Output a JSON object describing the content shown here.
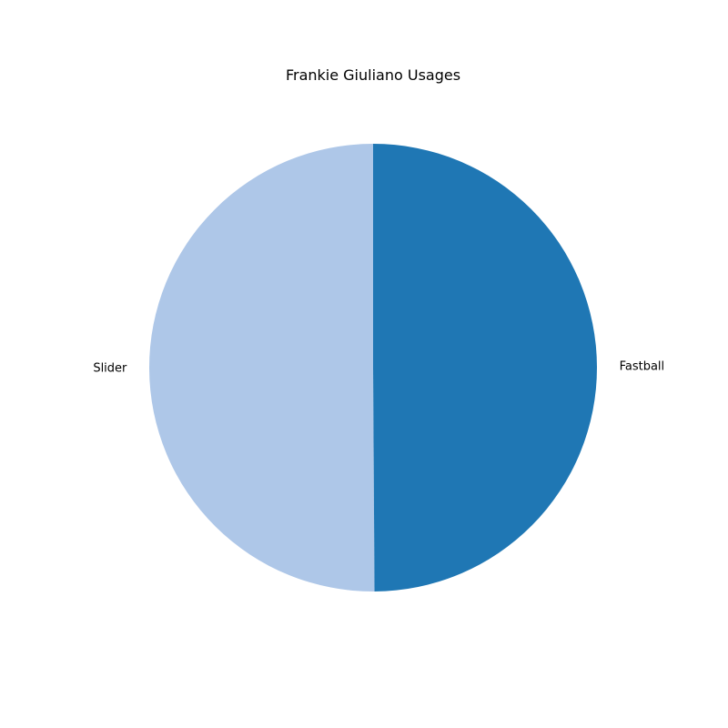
{
  "chart_data": {
    "type": "pie",
    "title": "Frankie Giuliano Usages",
    "slices": [
      {
        "label": "Slider",
        "value": 50.1,
        "color": "#aec7e8"
      },
      {
        "label": "Fastball",
        "value": 49.9,
        "color": "#1f77b4"
      }
    ],
    "start_angle_deg": 90,
    "direction": "counterclockwise",
    "legend": "none"
  }
}
